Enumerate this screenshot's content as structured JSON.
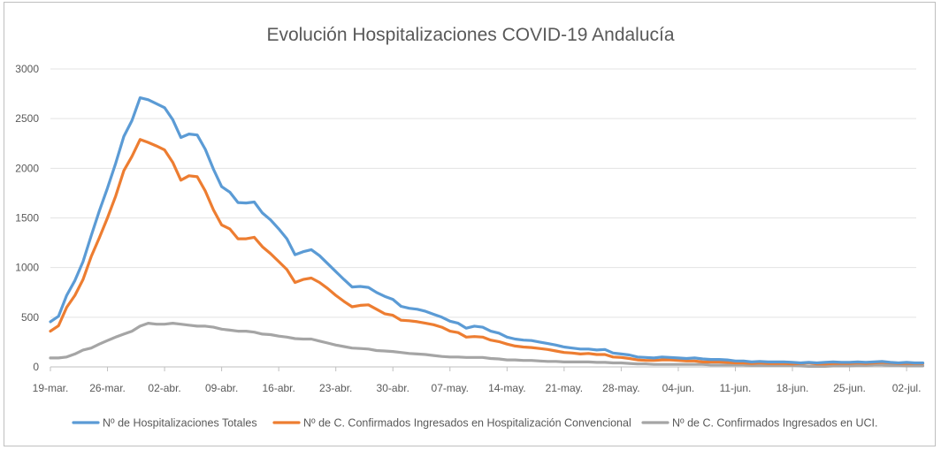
{
  "chart_data": {
    "type": "line",
    "title": "Evolución Hospitalizaciones COVID-19 Andalucía",
    "xlabel": "",
    "ylabel": "",
    "ylim": [
      0,
      3000
    ],
    "yticks": [
      "0",
      "500",
      "1000",
      "1500",
      "2000",
      "2500",
      "3000"
    ],
    "xticks": [
      "19-mar.",
      "26-mar.",
      "02-abr.",
      "09-abr.",
      "16-abr.",
      "23-abr.",
      "30-abr.",
      "07-may.",
      "14-may.",
      "21-may.",
      "28-may.",
      "04-jun.",
      "11-jun.",
      "18-jun.",
      "25-jun.",
      "02-jul."
    ],
    "x_start": "19-mar.",
    "x_step": "1 día",
    "grid": true,
    "legend_position": "bottom",
    "series": [
      {
        "name": "Nº de Hospitalizaciones Totales",
        "color": "#5b9bd5",
        "values": [
          455,
          510,
          720,
          870,
          1060,
          1320,
          1570,
          1800,
          2050,
          2320,
          2480,
          2710,
          2690,
          2650,
          2610,
          2490,
          2310,
          2345,
          2335,
          2190,
          1990,
          1815,
          1760,
          1655,
          1650,
          1660,
          1550,
          1480,
          1390,
          1290,
          1130,
          1160,
          1180,
          1120,
          1040,
          960,
          880,
          805,
          810,
          800,
          750,
          710,
          680,
          610,
          590,
          580,
          560,
          530,
          500,
          460,
          440,
          390,
          410,
          400,
          360,
          340,
          300,
          280,
          270,
          265,
          250,
          235,
          220,
          200,
          190,
          180,
          180,
          170,
          175,
          140,
          130,
          120,
          100,
          95,
          90,
          100,
          95,
          90,
          85,
          90,
          80,
          75,
          75,
          70,
          60,
          60,
          50,
          55,
          50,
          50,
          50,
          45,
          40,
          45,
          40,
          45,
          50,
          45,
          45,
          50,
          45,
          50,
          55,
          45,
          40,
          45,
          40,
          40
        ]
      },
      {
        "name": "Nº de C. Confirmados Ingresados en Hospitalización Convencional",
        "color": "#ed7d31",
        "values": [
          360,
          415,
          600,
          720,
          880,
          1110,
          1300,
          1500,
          1720,
          1975,
          2120,
          2290,
          2260,
          2225,
          2185,
          2060,
          1880,
          1925,
          1915,
          1770,
          1580,
          1430,
          1390,
          1290,
          1290,
          1305,
          1210,
          1140,
          1060,
          980,
          850,
          880,
          895,
          850,
          790,
          720,
          660,
          605,
          620,
          625,
          580,
          535,
          520,
          470,
          465,
          455,
          440,
          425,
          400,
          360,
          345,
          300,
          305,
          300,
          270,
          255,
          230,
          210,
          200,
          195,
          185,
          175,
          160,
          145,
          140,
          130,
          135,
          125,
          125,
          100,
          95,
          85,
          70,
          65,
          65,
          70,
          70,
          65,
          60,
          60,
          50,
          50,
          50,
          45,
          40,
          40,
          35,
          40,
          35,
          35,
          35,
          30,
          35,
          40,
          30,
          30,
          35,
          35,
          35,
          40,
          35,
          40,
          45,
          40,
          35,
          35,
          35,
          35
        ]
      },
      {
        "name": "Nº de C. Confirmados Ingresados en UCI.",
        "color": "#a5a5a5",
        "values": [
          90,
          90,
          100,
          130,
          170,
          190,
          230,
          265,
          300,
          330,
          360,
          410,
          440,
          430,
          430,
          440,
          430,
          420,
          410,
          410,
          400,
          380,
          370,
          360,
          360,
          350,
          330,
          325,
          310,
          300,
          285,
          280,
          280,
          260,
          240,
          220,
          205,
          190,
          185,
          180,
          165,
          160,
          155,
          145,
          135,
          130,
          125,
          115,
          105,
          100,
          100,
          95,
          95,
          95,
          85,
          80,
          70,
          70,
          65,
          65,
          60,
          55,
          55,
          50,
          50,
          50,
          50,
          45,
          45,
          40,
          40,
          35,
          30,
          30,
          25,
          25,
          25,
          25,
          25,
          25,
          25,
          20,
          20,
          20,
          20,
          20,
          15,
          15,
          15,
          15,
          15,
          15,
          10,
          5,
          5,
          5,
          10,
          10,
          10,
          15,
          15,
          20,
          20,
          15,
          15,
          10,
          10,
          10
        ]
      }
    ]
  }
}
